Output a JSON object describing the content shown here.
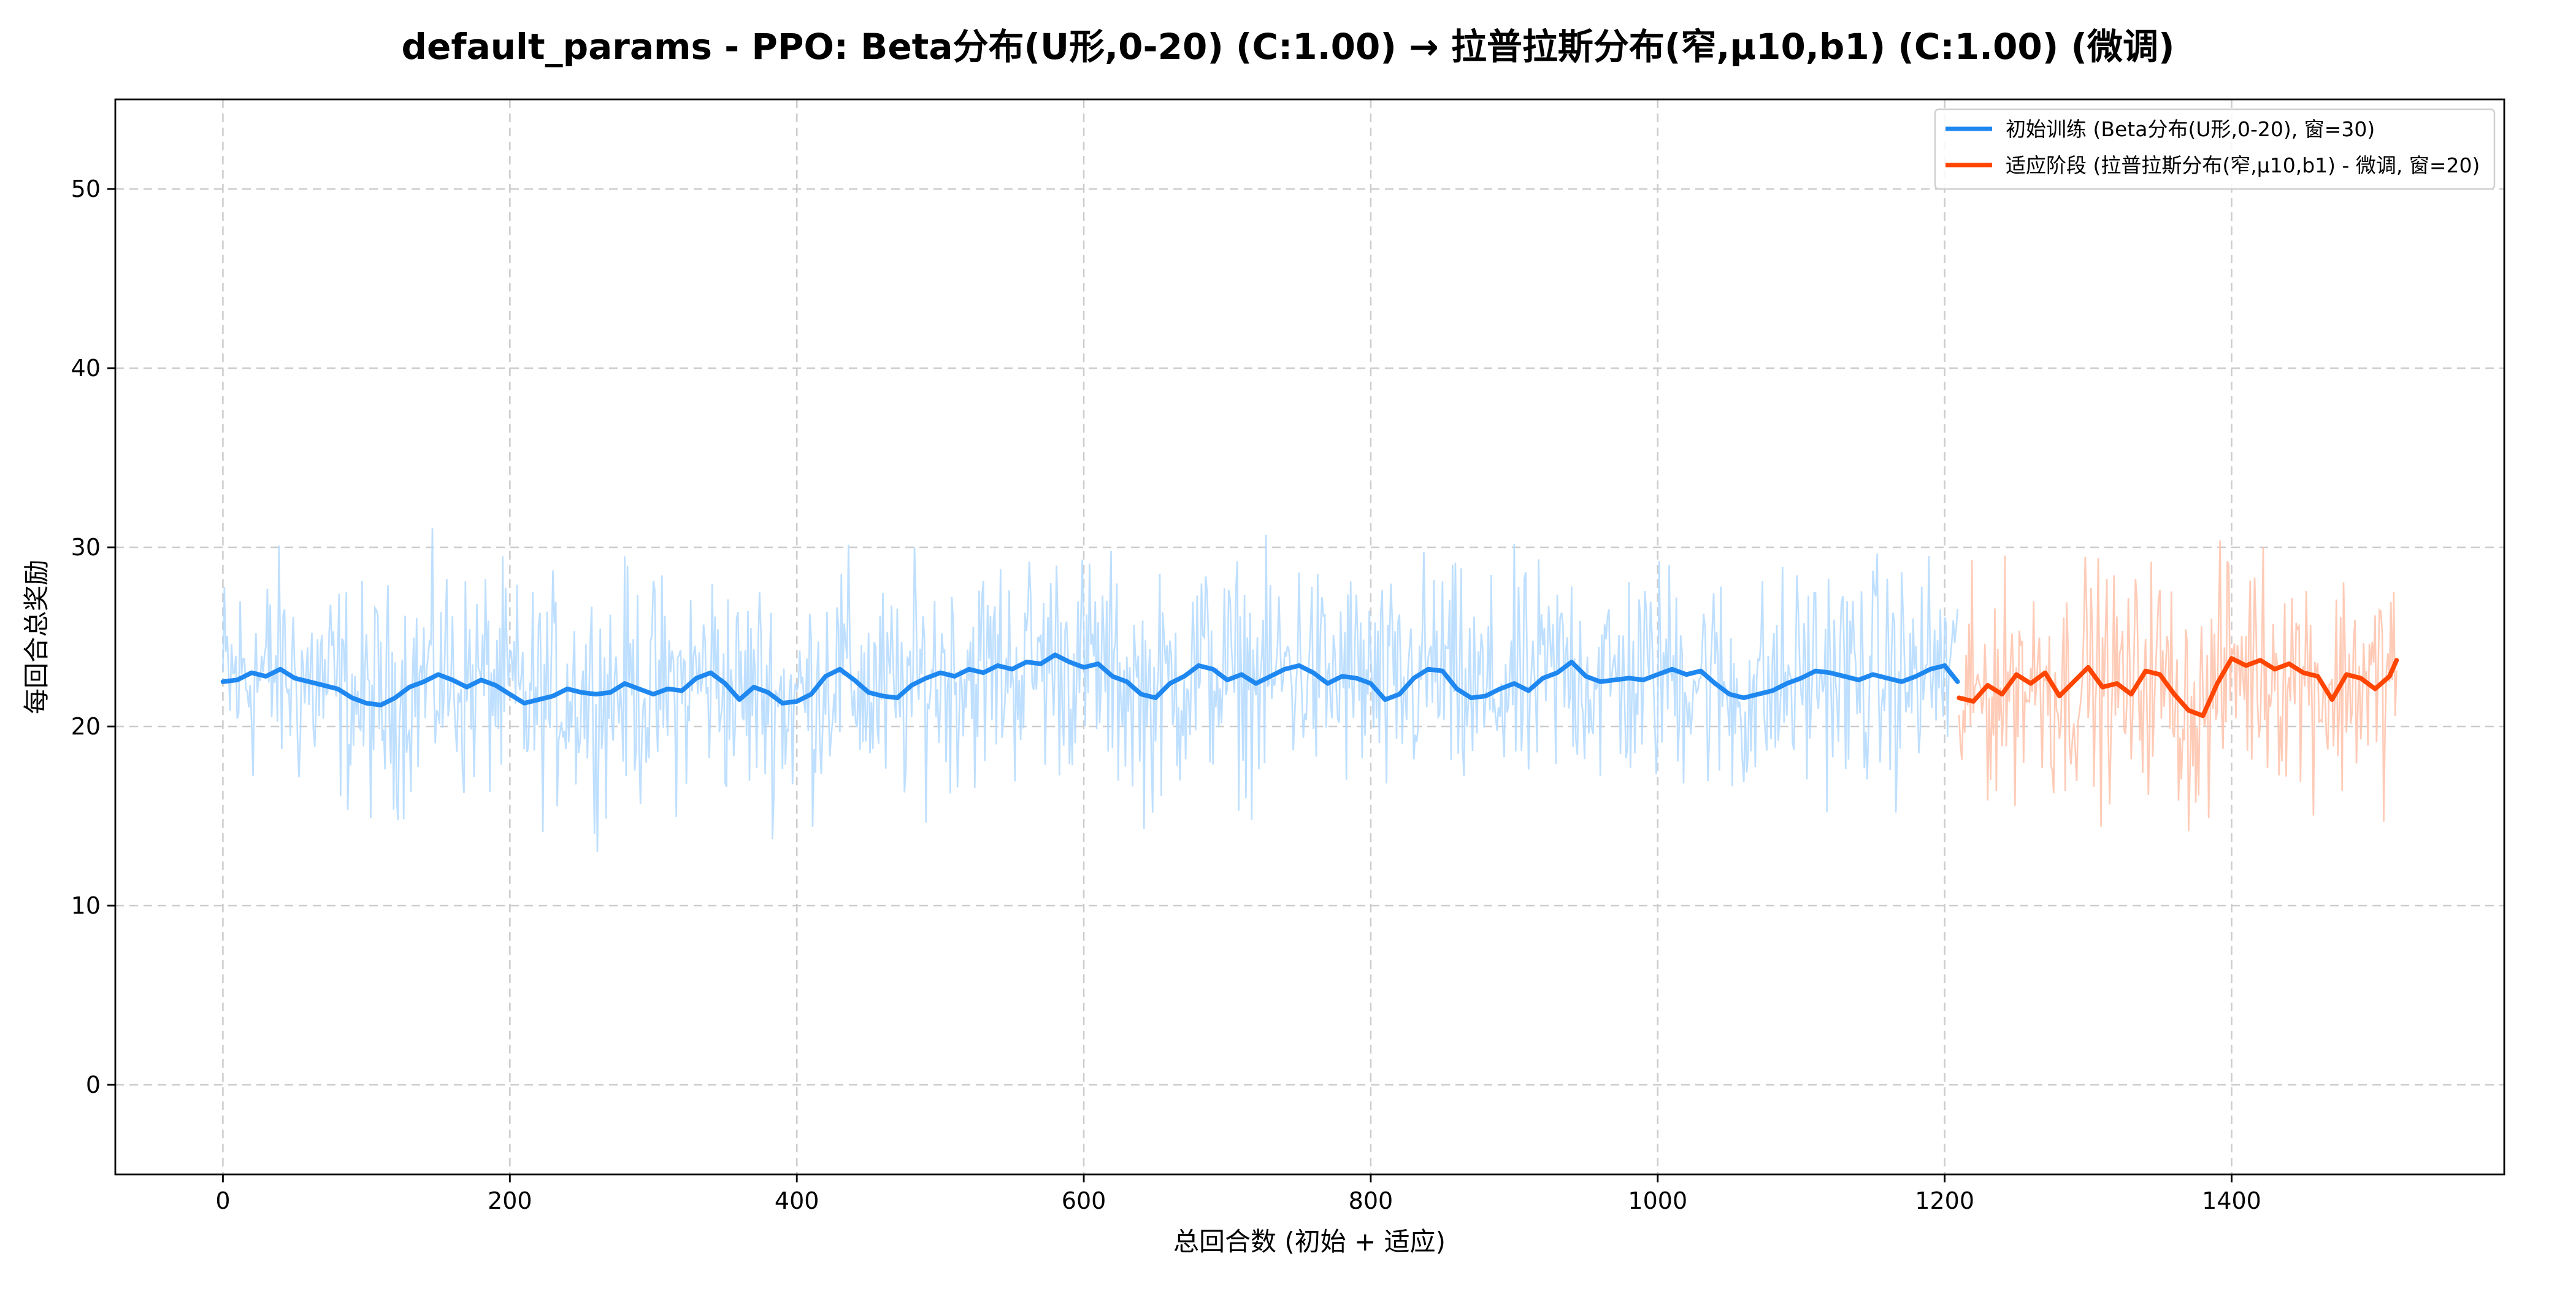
{
  "chart_data": {
    "type": "line",
    "title": "default_params - PPO: Beta分布(U形,0-20) (C:1.00) → 拉普拉斯分布(窄,μ10,b1) (C:1.00) (微调)",
    "xlabel": "总回合数 (初始 + 适应)",
    "ylabel": "每回合总奖励",
    "xlim": [
      -75,
      1590
    ],
    "ylim": [
      -5,
      55
    ],
    "x_ticks": [
      0,
      200,
      400,
      600,
      800,
      1000,
      1200,
      1400
    ],
    "y_ticks": [
      0,
      10,
      20,
      30,
      40,
      50
    ],
    "grid": true,
    "legend_position": "upper right",
    "colors": {
      "initial_smooth": "#1e88f0",
      "initial_raw": "#b3d9ff",
      "adapt_smooth": "#ff4500",
      "adapt_raw": "#ffc2aa"
    },
    "raw_range": {
      "initial": {
        "x": [
          0,
          1209
        ],
        "approx_min": 9.5,
        "approx_max": 34.6
      },
      "adaptation": {
        "x": [
          1210,
          1515
        ],
        "approx_min": 12.5,
        "approx_max": 34.7
      }
    },
    "series": [
      {
        "name": "初始训练 (Beta分布(U形,0-20), 窗=30)",
        "kind": "moving_average",
        "x": [
          0,
          10,
          20,
          30,
          40,
          50,
          60,
          70,
          80,
          90,
          100,
          110,
          120,
          130,
          140,
          150,
          160,
          170,
          180,
          190,
          200,
          210,
          220,
          230,
          240,
          250,
          260,
          270,
          280,
          290,
          300,
          310,
          320,
          330,
          340,
          350,
          360,
          370,
          380,
          390,
          400,
          410,
          420,
          430,
          440,
          450,
          460,
          470,
          480,
          490,
          500,
          510,
          520,
          530,
          540,
          550,
          560,
          570,
          580,
          590,
          600,
          610,
          620,
          630,
          640,
          650,
          660,
          670,
          680,
          690,
          700,
          710,
          720,
          730,
          740,
          750,
          760,
          770,
          780,
          790,
          800,
          810,
          820,
          830,
          840,
          850,
          860,
          870,
          880,
          890,
          900,
          910,
          920,
          930,
          940,
          950,
          960,
          970,
          980,
          990,
          1000,
          1010,
          1020,
          1030,
          1040,
          1050,
          1060,
          1070,
          1080,
          1090,
          1100,
          1110,
          1120,
          1130,
          1140,
          1150,
          1160,
          1170,
          1180,
          1190,
          1200,
          1209
        ],
        "values": [
          22.5,
          22.6,
          23.0,
          22.8,
          23.2,
          22.7,
          22.5,
          22.3,
          22.1,
          21.6,
          21.3,
          21.2,
          21.6,
          22.2,
          22.5,
          22.9,
          22.6,
          22.2,
          22.6,
          22.3,
          21.8,
          21.3,
          21.5,
          21.7,
          22.1,
          21.9,
          21.8,
          21.9,
          22.4,
          22.1,
          21.8,
          22.1,
          22.0,
          22.7,
          23.0,
          22.4,
          21.5,
          22.2,
          21.9,
          21.3,
          21.4,
          21.8,
          22.8,
          23.2,
          22.6,
          21.9,
          21.7,
          21.6,
          22.3,
          22.7,
          23.0,
          22.8,
          23.2,
          23.0,
          23.4,
          23.2,
          23.6,
          23.5,
          24.0,
          23.6,
          23.3,
          23.5,
          22.8,
          22.5,
          21.8,
          21.6,
          22.4,
          22.8,
          23.4,
          23.2,
          22.6,
          22.9,
          22.4,
          22.8,
          23.2,
          23.4,
          23.0,
          22.4,
          22.8,
          22.7,
          22.4,
          21.5,
          21.8,
          22.7,
          23.2,
          23.1,
          22.1,
          21.6,
          21.7,
          22.1,
          22.4,
          22.0,
          22.7,
          23.0,
          23.6,
          22.8,
          22.5,
          22.6,
          22.7,
          22.6,
          22.9,
          23.2,
          22.9,
          23.1,
          22.4,
          21.8,
          21.6,
          21.8,
          22.0,
          22.4,
          22.7,
          23.1,
          23.0,
          22.8,
          22.6,
          22.9,
          22.7,
          22.5,
          22.8,
          23.2,
          23.4,
          22.5
        ]
      },
      {
        "name": "适应阶段 (拉普拉斯分布(窄,μ10,b1) - 微调, 窗=20)",
        "kind": "moving_average",
        "x": [
          1210,
          1220,
          1230,
          1240,
          1250,
          1260,
          1270,
          1280,
          1290,
          1300,
          1310,
          1320,
          1330,
          1340,
          1350,
          1360,
          1370,
          1380,
          1390,
          1400,
          1410,
          1420,
          1430,
          1440,
          1450,
          1460,
          1470,
          1480,
          1490,
          1500,
          1510,
          1515
        ],
        "values": [
          21.6,
          21.4,
          22.3,
          21.8,
          22.9,
          22.4,
          23.0,
          21.7,
          22.5,
          23.3,
          22.2,
          22.4,
          21.8,
          23.1,
          22.9,
          21.8,
          20.9,
          20.6,
          22.4,
          23.8,
          23.4,
          23.7,
          23.2,
          23.5,
          23.0,
          22.8,
          21.5,
          22.9,
          22.7,
          22.1,
          22.8,
          23.7
        ]
      }
    ]
  }
}
